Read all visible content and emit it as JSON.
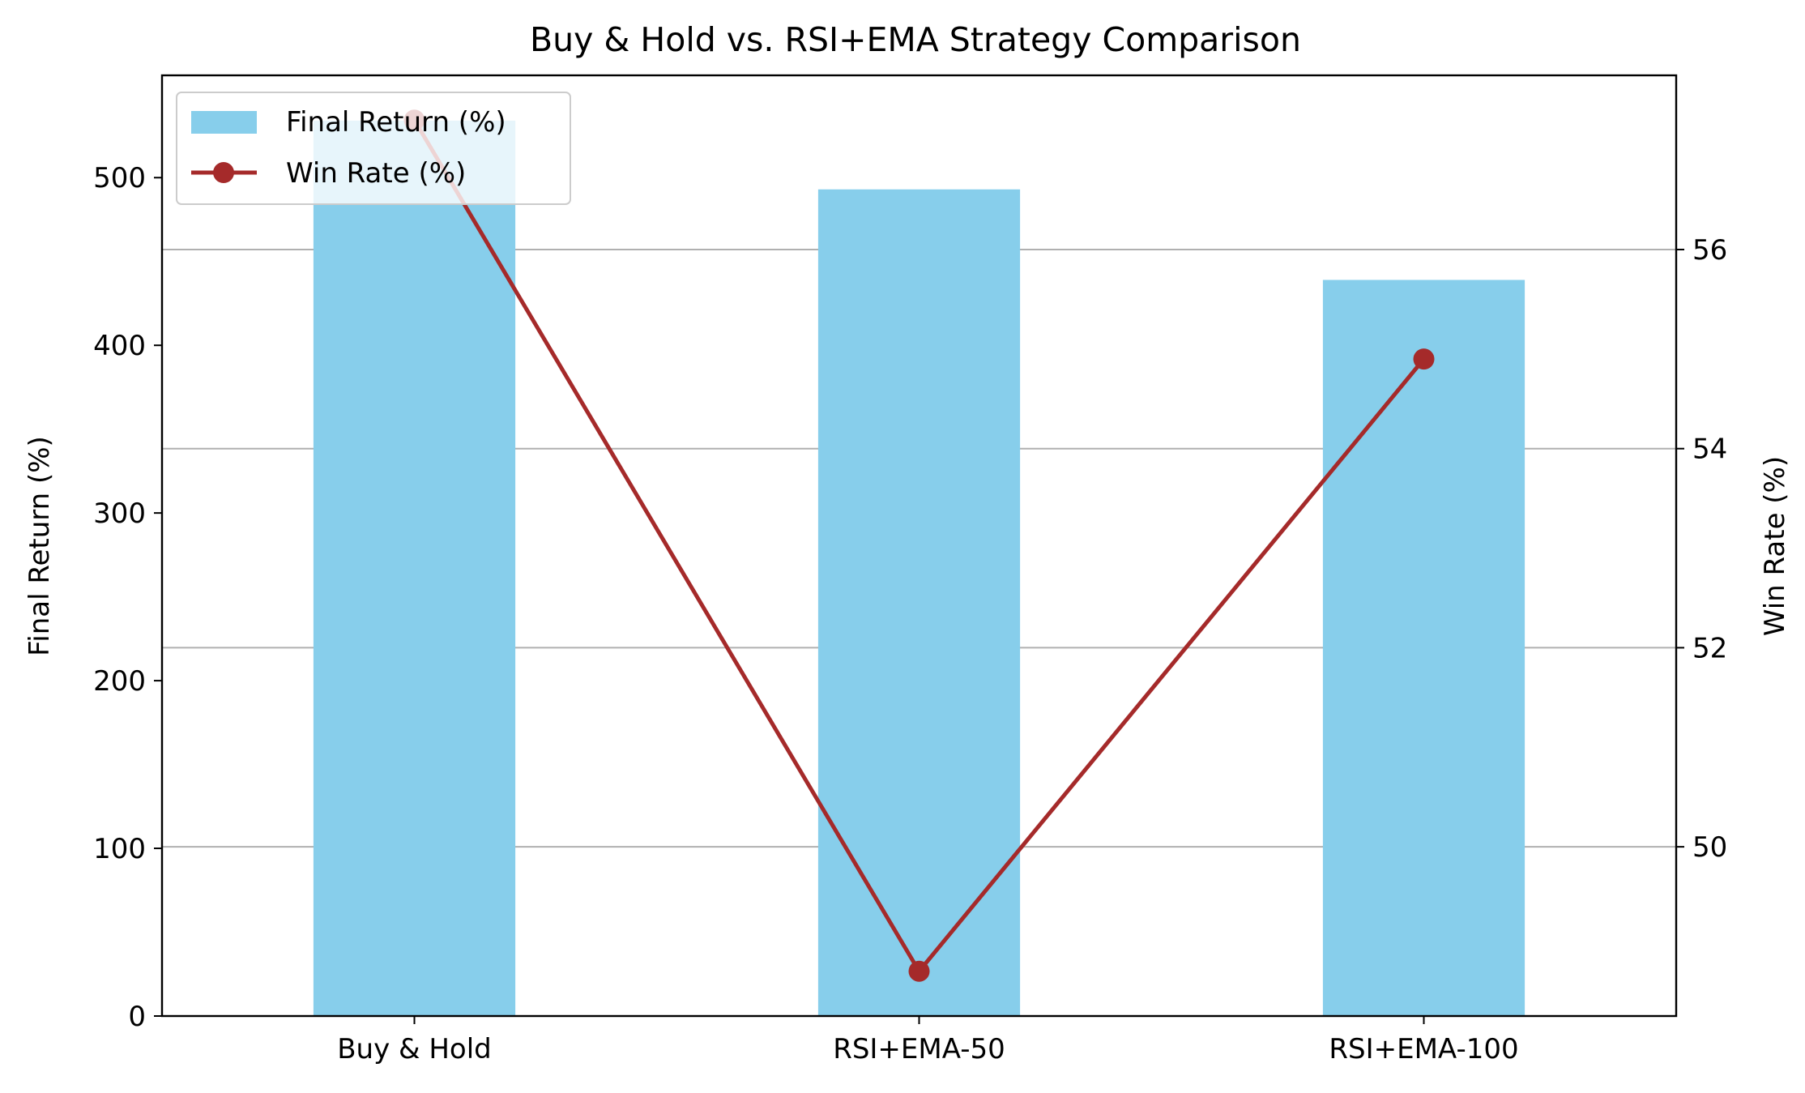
{
  "chart_data": {
    "type": "bar",
    "title": "Buy & Hold vs. RSI+EMA Strategy Comparison",
    "categories": [
      "Buy & Hold",
      "RSI+EMA-50",
      "RSI+EMA-100"
    ],
    "series": [
      {
        "name": "Final Return (%)",
        "type": "bar",
        "axis": "left",
        "color": "#87CEEB",
        "values": [
          534,
          493,
          439
        ]
      },
      {
        "name": "Win Rate (%)",
        "type": "line",
        "axis": "right",
        "color": "#A52A2A",
        "marker": "circle",
        "values": [
          57.3,
          48.75,
          54.9
        ]
      }
    ],
    "y_left": {
      "label": "Final Return (%)",
      "ylim": [
        0,
        561
      ],
      "ticks": [
        0,
        100,
        200,
        300,
        400,
        500
      ]
    },
    "y_right": {
      "label": "Win Rate (%)",
      "ylim": [
        48.3,
        57.75
      ],
      "ticks": [
        50,
        52,
        54,
        56
      ],
      "grid": true
    },
    "xlabel": "",
    "legend_position": "upper-left"
  }
}
